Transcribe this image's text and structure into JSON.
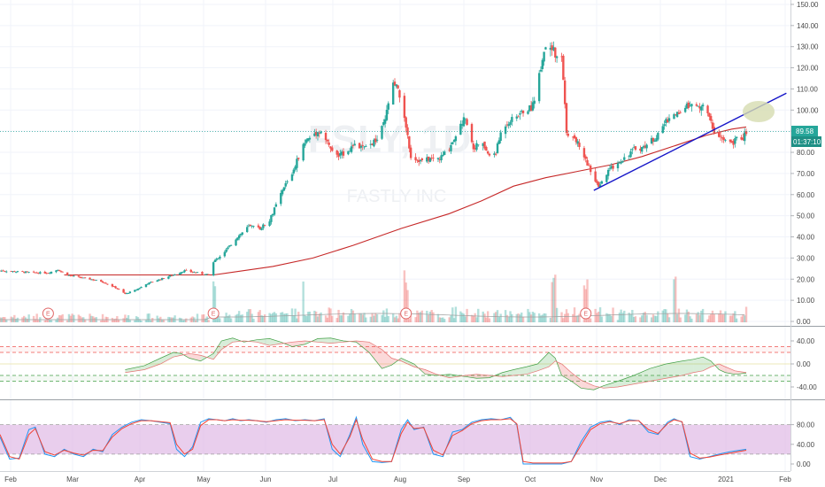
{
  "watermark": {
    "ticker": "FSLY, 1D",
    "company": "FASTLY INC"
  },
  "price_tag": "89.58",
  "countdown_tag": "01:37:10",
  "earnings_marker": "E",
  "colors": {
    "up": "#26a69a",
    "down": "#ef5350",
    "ma": "#c62828",
    "trendline": "#1414c8",
    "vol_up": "rgba(38,166,154,0.35)",
    "vol_down": "rgba(239,83,80,0.35)",
    "stoch_k": "#2196f3",
    "stoch_d": "#f44336",
    "stoch_band": "#e1bee7",
    "price_tag_bg": "#26a69a",
    "countdown_bg": "#1e8f85",
    "highlight": "#d6dcb0"
  },
  "chart_data": {
    "type": "candlestick",
    "price_axis": {
      "ticks": [
        "150.00",
        "140.00",
        "130.00",
        "120.00",
        "110.00",
        "100.00",
        "90.00",
        "80.00",
        "70.00",
        "60.00",
        "50.00",
        "40.00",
        "30.00",
        "20.00",
        "10.00",
        "0.00"
      ],
      "range": [
        0,
        150
      ]
    },
    "osc_axis": {
      "ticks": [
        "40.00",
        "0.00",
        "-40.00"
      ],
      "range": [
        -60,
        60
      ]
    },
    "stoch_axis": {
      "ticks": [
        "80.00",
        "40.00",
        "0.00"
      ],
      "range": [
        -5,
        105
      ]
    },
    "time_axis": {
      "ticks": [
        "Feb",
        "Mar",
        "Apr",
        "May",
        "Jun",
        "Jul",
        "Aug",
        "Sep",
        "Oct",
        "Nov",
        "Dec",
        "2021",
        "Feb"
      ]
    },
    "close_anchors": [
      [
        0,
        24
      ],
      [
        12,
        23.5
      ],
      [
        22,
        23
      ],
      [
        30,
        23
      ],
      [
        36,
        24.5
      ],
      [
        42,
        22
      ],
      [
        48,
        21
      ],
      [
        56,
        20
      ],
      [
        63,
        19
      ],
      [
        72,
        16
      ],
      [
        78,
        13
      ],
      [
        85,
        15
      ],
      [
        92,
        18
      ],
      [
        100,
        20
      ],
      [
        108,
        22
      ],
      [
        115,
        24
      ],
      [
        123,
        23
      ],
      [
        130,
        22
      ],
      [
        133,
        28
      ],
      [
        140,
        33
      ],
      [
        148,
        40
      ],
      [
        155,
        45
      ],
      [
        162,
        44
      ],
      [
        168,
        48
      ],
      [
        172,
        55
      ],
      [
        178,
        65
      ],
      [
        182,
        70
      ],
      [
        186,
        78
      ],
      [
        190,
        85
      ],
      [
        196,
        89
      ],
      [
        200,
        90
      ],
      [
        205,
        83
      ],
      [
        210,
        78
      ],
      [
        215,
        80
      ],
      [
        220,
        83
      ],
      [
        228,
        82
      ],
      [
        235,
        86
      ],
      [
        240,
        95
      ],
      [
        244,
        112
      ],
      [
        247,
        111
      ],
      [
        251,
        102
      ],
      [
        256,
        78
      ],
      [
        262,
        76
      ],
      [
        268,
        77
      ],
      [
        274,
        77
      ],
      [
        280,
        82
      ],
      [
        285,
        90
      ],
      [
        290,
        97
      ],
      [
        295,
        82
      ],
      [
        300,
        85
      ],
      [
        305,
        78
      ],
      [
        309,
        80
      ],
      [
        313,
        92
      ],
      [
        318,
        95
      ],
      [
        322,
        97
      ],
      [
        327,
        100
      ],
      [
        331,
        101
      ],
      [
        334,
        108
      ],
      [
        338,
        125
      ],
      [
        341,
        133
      ],
      [
        344,
        130
      ],
      [
        347,
        124
      ],
      [
        350,
        125
      ],
      [
        353,
        90
      ],
      [
        356,
        87
      ],
      [
        360,
        85
      ],
      [
        364,
        78
      ],
      [
        367,
        73
      ],
      [
        370,
        68
      ],
      [
        373,
        63
      ],
      [
        376,
        67
      ],
      [
        380,
        72
      ],
      [
        385,
        75
      ],
      [
        390,
        78
      ],
      [
        396,
        82
      ],
      [
        400,
        82
      ],
      [
        405,
        85
      ],
      [
        410,
        88
      ],
      [
        415,
        95
      ],
      [
        420,
        98
      ],
      [
        425,
        100
      ],
      [
        430,
        103
      ],
      [
        435,
        101
      ],
      [
        438,
        103
      ],
      [
        442,
        96
      ],
      [
        445,
        90
      ],
      [
        448,
        88
      ],
      [
        452,
        85
      ],
      [
        456,
        84
      ],
      [
        460,
        87
      ],
      [
        463,
        87
      ],
      [
        465,
        89.6
      ]
    ],
    "moving_average": [
      [
        40,
        22
      ],
      [
        80,
        22
      ],
      [
        100,
        22
      ],
      [
        133,
        22
      ],
      [
        170,
        26
      ],
      [
        195,
        30
      ],
      [
        220,
        36
      ],
      [
        250,
        44
      ],
      [
        280,
        51
      ],
      [
        300,
        57
      ],
      [
        320,
        64
      ],
      [
        340,
        68
      ],
      [
        360,
        71
      ],
      [
        380,
        74
      ],
      [
        400,
        78
      ],
      [
        420,
        83
      ],
      [
        440,
        88
      ],
      [
        456,
        91
      ],
      [
        465,
        92
      ]
    ],
    "trendline": [
      [
        370,
        62
      ],
      [
        490,
        108
      ]
    ],
    "earnings_days": [
      30,
      133,
      253,
      365
    ],
    "oscillator": {
      "series_a": [
        [
          78,
          -10
        ],
        [
          90,
          -3
        ],
        [
          100,
          10
        ],
        [
          108,
          20
        ],
        [
          113,
          18
        ],
        [
          118,
          10
        ],
        [
          125,
          5
        ],
        [
          133,
          18
        ],
        [
          138,
          40
        ],
        [
          145,
          45
        ],
        [
          152,
          38
        ],
        [
          160,
          42
        ],
        [
          168,
          44
        ],
        [
          175,
          38
        ],
        [
          182,
          30
        ],
        [
          190,
          34
        ],
        [
          198,
          44
        ],
        [
          206,
          45
        ],
        [
          214,
          40
        ],
        [
          222,
          38
        ],
        [
          230,
          20
        ],
        [
          238,
          -8
        ],
        [
          244,
          -2
        ],
        [
          250,
          10
        ],
        [
          258,
          0
        ],
        [
          265,
          -18
        ],
        [
          272,
          -20
        ],
        [
          280,
          -18
        ],
        [
          290,
          -22
        ],
        [
          297,
          -25
        ],
        [
          305,
          -24
        ],
        [
          313,
          -15
        ],
        [
          320,
          -10
        ],
        [
          328,
          -5
        ],
        [
          335,
          0
        ],
        [
          342,
          20
        ],
        [
          346,
          10
        ],
        [
          350,
          -20
        ],
        [
          356,
          -30
        ],
        [
          362,
          -42
        ],
        [
          370,
          -45
        ],
        [
          376,
          -38
        ],
        [
          385,
          -30
        ],
        [
          395,
          -20
        ],
        [
          405,
          -8
        ],
        [
          415,
          0
        ],
        [
          425,
          5
        ],
        [
          432,
          8
        ],
        [
          438,
          12
        ],
        [
          443,
          5
        ],
        [
          448,
          -10
        ],
        [
          452,
          -15
        ],
        [
          458,
          -18
        ],
        [
          465,
          -16
        ]
      ],
      "series_b": [
        [
          78,
          -15
        ],
        [
          90,
          -10
        ],
        [
          100,
          0
        ],
        [
          108,
          12
        ],
        [
          113,
          15
        ],
        [
          118,
          18
        ],
        [
          125,
          15
        ],
        [
          133,
          8
        ],
        [
          138,
          25
        ],
        [
          145,
          38
        ],
        [
          152,
          40
        ],
        [
          160,
          38
        ],
        [
          168,
          32
        ],
        [
          175,
          35
        ],
        [
          182,
          38
        ],
        [
          190,
          40
        ],
        [
          198,
          38
        ],
        [
          206,
          36
        ],
        [
          214,
          38
        ],
        [
          222,
          40
        ],
        [
          230,
          38
        ],
        [
          238,
          25
        ],
        [
          244,
          10
        ],
        [
          250,
          5
        ],
        [
          258,
          -5
        ],
        [
          265,
          -10
        ],
        [
          272,
          -18
        ],
        [
          280,
          -24
        ],
        [
          290,
          -20
        ],
        [
          297,
          -18
        ],
        [
          305,
          -20
        ],
        [
          313,
          -22
        ],
        [
          320,
          -20
        ],
        [
          328,
          -18
        ],
        [
          335,
          -12
        ],
        [
          342,
          -5
        ],
        [
          346,
          5
        ],
        [
          350,
          0
        ],
        [
          356,
          -15
        ],
        [
          362,
          -28
        ],
        [
          370,
          -38
        ],
        [
          376,
          -42
        ],
        [
          385,
          -40
        ],
        [
          395,
          -35
        ],
        [
          405,
          -30
        ],
        [
          415,
          -25
        ],
        [
          425,
          -20
        ],
        [
          432,
          -15
        ],
        [
          438,
          -12
        ],
        [
          443,
          -5
        ],
        [
          448,
          0
        ],
        [
          452,
          -5
        ],
        [
          458,
          -12
        ],
        [
          465,
          -15
        ]
      ],
      "upper_lines": [
        30,
        20
      ],
      "lower_lines": [
        -20,
        -30
      ]
    },
    "stochastic": {
      "k": [
        [
          0,
          55
        ],
        [
          6,
          10
        ],
        [
          12,
          12
        ],
        [
          18,
          70
        ],
        [
          22,
          75
        ],
        [
          28,
          20
        ],
        [
          34,
          15
        ],
        [
          40,
          30
        ],
        [
          46,
          20
        ],
        [
          52,
          15
        ],
        [
          58,
          30
        ],
        [
          64,
          25
        ],
        [
          70,
          60
        ],
        [
          76,
          75
        ],
        [
          82,
          85
        ],
        [
          88,
          90
        ],
        [
          94,
          88
        ],
        [
          100,
          85
        ],
        [
          106,
          82
        ],
        [
          110,
          30
        ],
        [
          115,
          15
        ],
        [
          120,
          35
        ],
        [
          125,
          85
        ],
        [
          130,
          92
        ],
        [
          135,
          90
        ],
        [
          140,
          88
        ],
        [
          145,
          92
        ],
        [
          150,
          88
        ],
        [
          155,
          90
        ],
        [
          160,
          88
        ],
        [
          166,
          85
        ],
        [
          172,
          90
        ],
        [
          178,
          92
        ],
        [
          184,
          88
        ],
        [
          190,
          90
        ],
        [
          196,
          88
        ],
        [
          202,
          92
        ],
        [
          207,
          30
        ],
        [
          212,
          15
        ],
        [
          218,
          60
        ],
        [
          222,
          95
        ],
        [
          226,
          40
        ],
        [
          232,
          5
        ],
        [
          238,
          3
        ],
        [
          244,
          5
        ],
        [
          250,
          70
        ],
        [
          254,
          90
        ],
        [
          258,
          70
        ],
        [
          264,
          75
        ],
        [
          270,
          20
        ],
        [
          276,
          15
        ],
        [
          282,
          65
        ],
        [
          288,
          70
        ],
        [
          294,
          85
        ],
        [
          300,
          90
        ],
        [
          306,
          92
        ],
        [
          312,
          90
        ],
        [
          318,
          95
        ],
        [
          322,
          80
        ],
        [
          326,
          0
        ],
        [
          332,
          0
        ],
        [
          338,
          0
        ],
        [
          344,
          0
        ],
        [
          350,
          0
        ],
        [
          356,
          5
        ],
        [
          362,
          45
        ],
        [
          368,
          75
        ],
        [
          374,
          85
        ],
        [
          380,
          88
        ],
        [
          386,
          80
        ],
        [
          392,
          90
        ],
        [
          398,
          88
        ],
        [
          404,
          65
        ],
        [
          410,
          60
        ],
        [
          416,
          85
        ],
        [
          420,
          92
        ],
        [
          425,
          85
        ],
        [
          430,
          15
        ],
        [
          436,
          10
        ],
        [
          442,
          15
        ],
        [
          448,
          20
        ],
        [
          455,
          25
        ],
        [
          465,
          30
        ]
      ],
      "d": [
        [
          0,
          60
        ],
        [
          6,
          15
        ],
        [
          12,
          10
        ],
        [
          18,
          60
        ],
        [
          22,
          72
        ],
        [
          28,
          25
        ],
        [
          34,
          18
        ],
        [
          40,
          28
        ],
        [
          46,
          22
        ],
        [
          52,
          18
        ],
        [
          58,
          28
        ],
        [
          64,
          27
        ],
        [
          70,
          55
        ],
        [
          76,
          72
        ],
        [
          82,
          82
        ],
        [
          88,
          88
        ],
        [
          94,
          88
        ],
        [
          100,
          86
        ],
        [
          106,
          84
        ],
        [
          110,
          40
        ],
        [
          115,
          20
        ],
        [
          120,
          30
        ],
        [
          125,
          78
        ],
        [
          130,
          90
        ],
        [
          135,
          90
        ],
        [
          140,
          88
        ],
        [
          145,
          90
        ],
        [
          150,
          89
        ],
        [
          155,
          89
        ],
        [
          160,
          88
        ],
        [
          166,
          86
        ],
        [
          172,
          88
        ],
        [
          178,
          90
        ],
        [
          184,
          89
        ],
        [
          190,
          89
        ],
        [
          196,
          88
        ],
        [
          202,
          90
        ],
        [
          207,
          40
        ],
        [
          212,
          20
        ],
        [
          218,
          55
        ],
        [
          222,
          90
        ],
        [
          226,
          50
        ],
        [
          232,
          10
        ],
        [
          238,
          5
        ],
        [
          244,
          5
        ],
        [
          250,
          62
        ],
        [
          254,
          85
        ],
        [
          258,
          72
        ],
        [
          264,
          74
        ],
        [
          270,
          28
        ],
        [
          276,
          18
        ],
        [
          282,
          58
        ],
        [
          288,
          68
        ],
        [
          294,
          82
        ],
        [
          300,
          88
        ],
        [
          306,
          90
        ],
        [
          312,
          90
        ],
        [
          318,
          92
        ],
        [
          322,
          82
        ],
        [
          326,
          5
        ],
        [
          332,
          2
        ],
        [
          338,
          2
        ],
        [
          344,
          2
        ],
        [
          350,
          2
        ],
        [
          356,
          5
        ],
        [
          362,
          38
        ],
        [
          368,
          70
        ],
        [
          374,
          82
        ],
        [
          380,
          86
        ],
        [
          386,
          82
        ],
        [
          392,
          88
        ],
        [
          398,
          88
        ],
        [
          404,
          70
        ],
        [
          410,
          62
        ],
        [
          416,
          82
        ],
        [
          420,
          90
        ],
        [
          425,
          86
        ],
        [
          430,
          22
        ],
        [
          436,
          12
        ],
        [
          442,
          14
        ],
        [
          448,
          18
        ],
        [
          455,
          22
        ],
        [
          465,
          28
        ]
      ],
      "band": [
        20,
        80
      ]
    }
  }
}
